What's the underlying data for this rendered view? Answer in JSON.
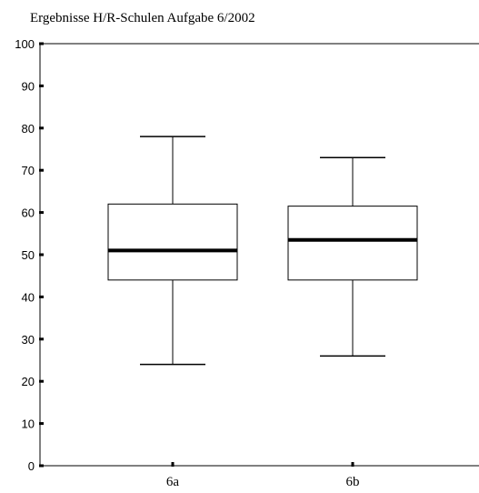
{
  "chart_data": {
    "type": "boxplot",
    "title": "Ergebnisse H/R-Schulen Aufgabe 6/2002",
    "xlabel": "",
    "ylabel": "",
    "ylim": [
      0,
      100
    ],
    "yticks": [
      0,
      10,
      20,
      30,
      40,
      50,
      60,
      70,
      80,
      90,
      100
    ],
    "categories": [
      "6a",
      "6b"
    ],
    "boxes": [
      {
        "category": "6a",
        "whisker_low": 24,
        "q1": 44,
        "median": 51,
        "q3": 62,
        "whisker_high": 78
      },
      {
        "category": "6b",
        "whisker_low": 26,
        "q1": 44,
        "median": 53.5,
        "q3": 61.5,
        "whisker_high": 73
      }
    ],
    "grid": false,
    "legend": "none"
  }
}
